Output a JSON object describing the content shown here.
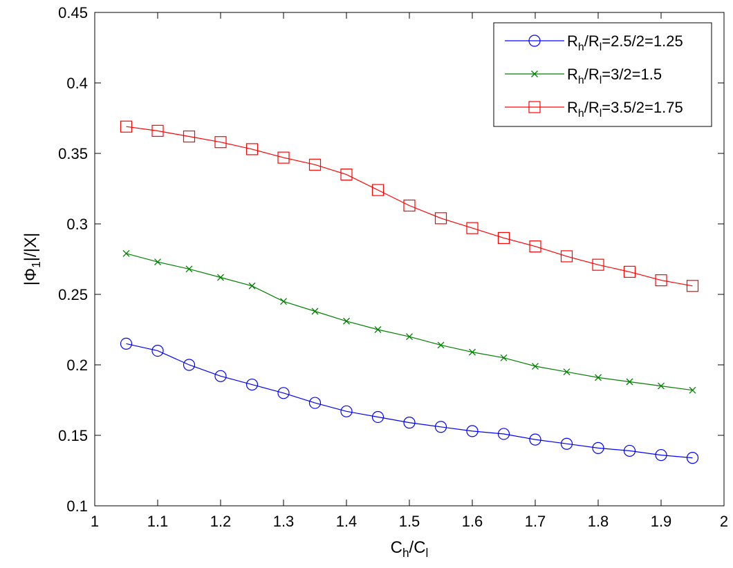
{
  "chart_data": {
    "type": "line",
    "title": "",
    "xlabel": {
      "main": "C",
      "sub1": "h",
      "mid": "/C",
      "sub2": "l"
    },
    "ylabel": {
      "pre": "|Φ",
      "sub": "1",
      "post": "|/|X|"
    },
    "xlim": [
      1,
      2
    ],
    "ylim": [
      0.1,
      0.45
    ],
    "grid": false,
    "legend_position": "top-right",
    "x_ticks": [
      "1",
      "1.1",
      "1.2",
      "1.3",
      "1.4",
      "1.5",
      "1.6",
      "1.7",
      "1.8",
      "1.9",
      "2"
    ],
    "y_ticks": [
      "0.1",
      "0.15",
      "0.2",
      "0.25",
      "0.3",
      "0.35",
      "0.4",
      "0.45"
    ],
    "x": [
      1.05,
      1.1,
      1.15,
      1.2,
      1.25,
      1.3,
      1.35,
      1.4,
      1.45,
      1.5,
      1.55,
      1.6,
      1.65,
      1.7,
      1.75,
      1.8,
      1.85,
      1.9,
      1.95
    ],
    "series": [
      {
        "name": "R_h/R_l=2.5/2=1.25",
        "legend": {
          "a": "R",
          "sa": "h",
          "b": "/R",
          "sb": "l",
          "c": "=2.5/2=1.25"
        },
        "color": "#0000ff",
        "marker": "circle",
        "values": [
          0.215,
          0.21,
          0.2,
          0.192,
          0.186,
          0.18,
          0.173,
          0.167,
          0.163,
          0.159,
          0.156,
          0.153,
          0.151,
          0.147,
          0.144,
          0.141,
          0.139,
          0.136,
          0.134
        ]
      },
      {
        "name": "R_h/R_l=3/2=1.5",
        "legend": {
          "a": "R",
          "sa": "h",
          "b": "/R",
          "sb": "l",
          "c": "=3/2=1.5"
        },
        "color": "#008000",
        "marker": "x",
        "values": [
          0.279,
          0.273,
          0.268,
          0.262,
          0.256,
          0.245,
          0.238,
          0.231,
          0.225,
          0.22,
          0.214,
          0.209,
          0.205,
          0.199,
          0.195,
          0.191,
          0.188,
          0.185,
          0.182
        ]
      },
      {
        "name": "R_h/R_l=3.5/2=1.75",
        "legend": {
          "a": "R",
          "sa": "h",
          "b": "/R",
          "sb": "l",
          "c": "=3.5/2=1.75"
        },
        "color": "#ff0000",
        "marker": "square",
        "values": [
          0.369,
          0.366,
          0.362,
          0.358,
          0.353,
          0.347,
          0.342,
          0.335,
          0.324,
          0.313,
          0.304,
          0.297,
          0.29,
          0.284,
          0.277,
          0.271,
          0.266,
          0.26,
          0.256
        ]
      }
    ]
  }
}
